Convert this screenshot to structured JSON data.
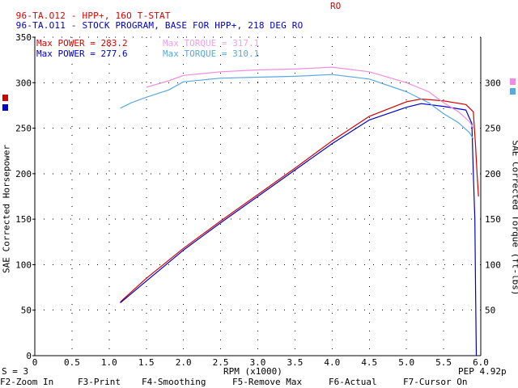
{
  "header": {
    "line1": "96-TA.O12 - HPP+, 16O T-STAT",
    "line1_color": "#e00000",
    "line1_tag": "RO",
    "line2": "96-TA.O11 - STOCK PROGRAM, BASE FOR HPP+, 218 DEG RO",
    "line2_color": "#0000d0"
  },
  "colors": {
    "power_run1": "#d00000",
    "power_run2": "#0000cc",
    "torque_run1": "#f08ce0",
    "torque_run2": "#5aa8e0",
    "grid": "#000000"
  },
  "chart_data": {
    "type": "line",
    "xlabel": "RPM (x1000)",
    "ylabel_left": "SAE Corrected Horsepower",
    "ylabel_right": "SAE Corrected Torque (ft-lbs)",
    "xlim": [
      0,
      6.0
    ],
    "ylim": [
      0,
      350
    ],
    "x_ticks": [
      "0",
      "0.5",
      "1.0",
      "1.5",
      "2.0",
      "2.5",
      "3.0",
      "3.5",
      "4.0",
      "4.5",
      "5.0",
      "5.5",
      "6.0"
    ],
    "y_ticks_left": [
      "0",
      "50",
      "100",
      "150",
      "200",
      "250",
      "300",
      "350"
    ],
    "y_ticks_right": [
      "300",
      "250",
      "200",
      "150",
      "100",
      "50"
    ],
    "grid": true,
    "legend": [
      {
        "label": "Max POWER = 283.2",
        "color": "#e00000"
      },
      {
        "label": "Max TORQUE = 317.1",
        "color": "#f0a0f0"
      },
      {
        "label": "Max POWER = 277.6",
        "color": "#0000cc"
      },
      {
        "label": "Max TORQUE = 310.1",
        "color": "#5aa8e0"
      }
    ],
    "series": [
      {
        "name": "Max POWER = 283.2",
        "color": "#d00000",
        "x": [
          1.15,
          1.5,
          2.0,
          2.5,
          3.0,
          3.5,
          4.0,
          4.5,
          5.0,
          5.2,
          5.5,
          5.8,
          5.9,
          5.93,
          5.95,
          5.97
        ],
        "y": [
          59,
          85,
          118,
          148,
          177,
          206,
          236,
          263,
          279,
          282,
          280,
          276,
          268,
          230,
          200,
          175
        ]
      },
      {
        "name": "Max POWER = 277.6",
        "color": "#0000cc",
        "x": [
          1.15,
          1.5,
          2.0,
          2.5,
          3.0,
          3.5,
          4.0,
          4.5,
          5.0,
          5.2,
          5.5,
          5.8,
          5.88,
          5.9,
          5.92,
          5.93,
          5.94
        ],
        "y": [
          58,
          82,
          116,
          146,
          175,
          204,
          233,
          259,
          273,
          277,
          274,
          270,
          255,
          200,
          150,
          70,
          0
        ]
      },
      {
        "name": "Max TORQUE = 317.1",
        "color": "#f08ce0",
        "x": [
          1.5,
          1.8,
          2.0,
          2.5,
          3.0,
          3.5,
          4.0,
          4.5,
          5.0,
          5.3,
          5.5,
          5.7,
          5.85,
          5.9
        ],
        "y": [
          295,
          302,
          308,
          312,
          314,
          315,
          317,
          312,
          300,
          290,
          278,
          268,
          257,
          250
        ]
      },
      {
        "name": "Max TORQUE = 310.1",
        "color": "#5aa8e0",
        "x": [
          1.15,
          1.3,
          1.5,
          1.8,
          2.0,
          2.5,
          3.0,
          3.5,
          4.0,
          4.5,
          5.0,
          5.3,
          5.5,
          5.7,
          5.85,
          5.9
        ],
        "y": [
          272,
          278,
          284,
          292,
          301,
          305,
          306,
          307,
          309,
          304,
          290,
          278,
          266,
          256,
          245,
          238
        ]
      }
    ]
  },
  "status": {
    "s_label": "S = 3",
    "pep": "PEP 4.92p"
  },
  "fkeys": [
    {
      "label": "F2-Zoom In"
    },
    {
      "label": "F3-Print"
    },
    {
      "label": "F4-Smoothing"
    },
    {
      "label": "F5-Remove Max"
    },
    {
      "label": "F6-Actual"
    },
    {
      "label": "F7-Cursor On"
    }
  ]
}
